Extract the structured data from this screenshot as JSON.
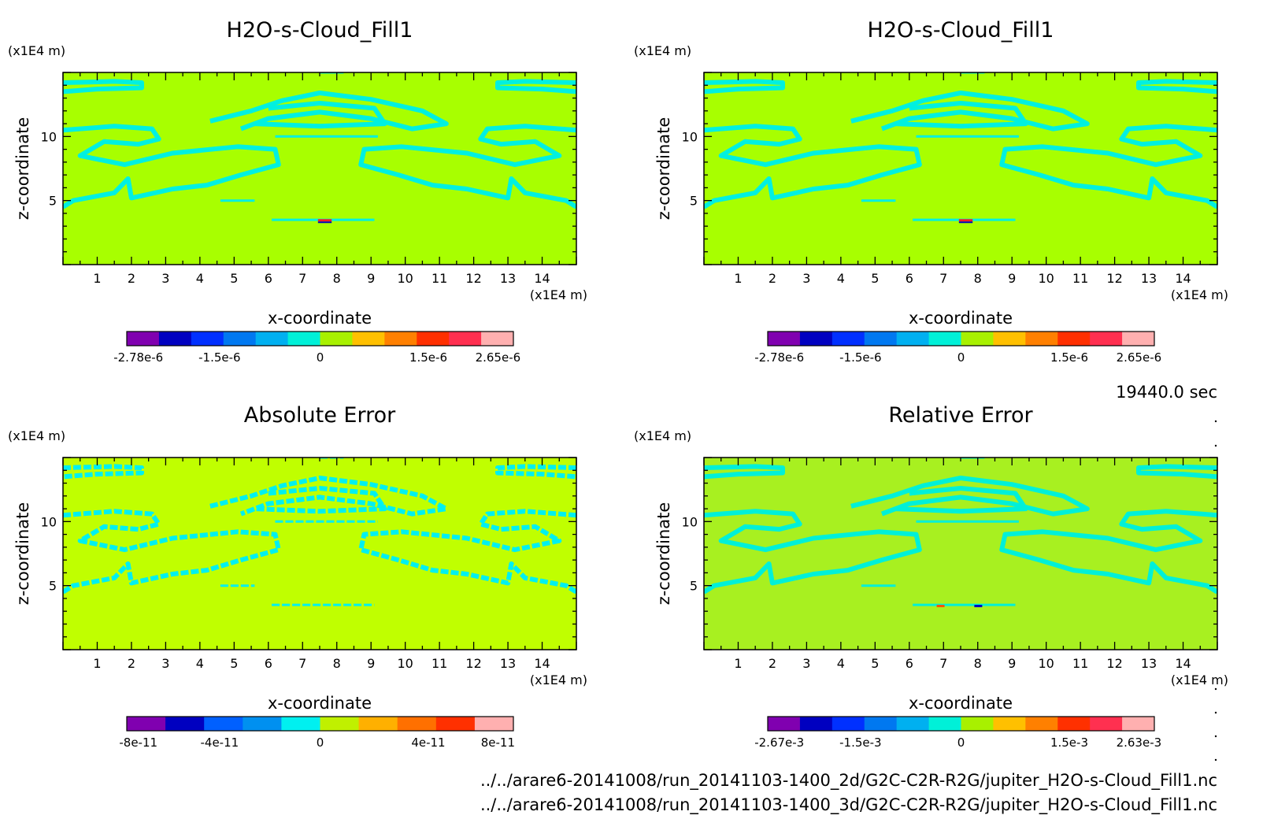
{
  "time_label": "19440.0 sec",
  "file_paths": [
    "../../arare6-20141008/run_20141103-1400_2d/G2C-C2R-R2G/jupiter_H2O-s-Cloud_Fill1.nc",
    "../../arare6-20141008/run_20141103-1400_3d/G2C-C2R-R2G/jupiter_H2O-s-Cloud_Fill1.nc"
  ],
  "chart_data": [
    {
      "type": "heatmap",
      "title": "H2O-s-Cloud_Fill1",
      "xlabel": "x-coordinate",
      "ylabel": "z-coordinate",
      "x_unit": "(x1E4 m)",
      "y_unit": "(x1E4 m)",
      "xlim": [
        0,
        15
      ],
      "ylim": [
        0,
        15
      ],
      "x_ticks": [
        "1",
        "2",
        "3",
        "4",
        "5",
        "6",
        "7",
        "8",
        "9",
        "10",
        "11",
        "12",
        "13",
        "14"
      ],
      "y_ticks": [
        "5",
        "10"
      ],
      "colorbar": {
        "labels": [
          "-2.78e-6",
          "-1.5e-6",
          "0",
          "1.5e-6",
          "2.65e-6"
        ],
        "colors": [
          "#8000b0",
          "#0000c0",
          "#0030ff",
          "#0078f0",
          "#00b0f0",
          "#00f0d8",
          "#a8f000",
          "#ffc000",
          "#ff8000",
          "#ff3000",
          "#ff3050",
          "#ffb0b0"
        ]
      },
      "background_color": "#a8ff00",
      "feature_color": "#00f0e0"
    },
    {
      "type": "heatmap",
      "title": "H2O-s-Cloud_Fill1",
      "xlabel": "x-coordinate",
      "ylabel": "z-coordinate",
      "x_unit": "(x1E4 m)",
      "y_unit": "(x1E4 m)",
      "xlim": [
        0,
        15
      ],
      "ylim": [
        0,
        15
      ],
      "x_ticks": [
        "1",
        "2",
        "3",
        "4",
        "5",
        "6",
        "7",
        "8",
        "9",
        "10",
        "11",
        "12",
        "13",
        "14"
      ],
      "y_ticks": [
        "5",
        "10"
      ],
      "colorbar": {
        "labels": [
          "-2.78e-6",
          "-1.5e-6",
          "0",
          "1.5e-6",
          "2.65e-6"
        ],
        "colors": [
          "#8000b0",
          "#0000c0",
          "#0030ff",
          "#0078f0",
          "#00b0f0",
          "#00f0d8",
          "#a8f000",
          "#ffc000",
          "#ff8000",
          "#ff3000",
          "#ff3050",
          "#ffb0b0"
        ]
      },
      "background_color": "#a8ff00",
      "feature_color": "#00f0e0"
    },
    {
      "type": "heatmap",
      "title": "Absolute Error",
      "xlabel": "x-coordinate",
      "ylabel": "z-coordinate",
      "x_unit": "(x1E4 m)",
      "y_unit": "(x1E4 m)",
      "xlim": [
        0,
        15
      ],
      "ylim": [
        0,
        15
      ],
      "x_ticks": [
        "1",
        "2",
        "3",
        "4",
        "5",
        "6",
        "7",
        "8",
        "9",
        "10",
        "11",
        "12",
        "13",
        "14"
      ],
      "y_ticks": [
        "5",
        "10"
      ],
      "colorbar": {
        "labels": [
          "-8e-11",
          "-4e-11",
          "0",
          "4e-11",
          "8e-11"
        ],
        "colors": [
          "#8000b0",
          "#0000c0",
          "#0060ff",
          "#0090f0",
          "#00f0f0",
          "#c0f000",
          "#ffb000",
          "#ff7000",
          "#ff3000",
          "#ffb0b0"
        ]
      },
      "background_color": "#c0ff00",
      "feature_color": "#00f0f0"
    },
    {
      "type": "heatmap",
      "title": "Relative Error",
      "xlabel": "x-coordinate",
      "ylabel": "z-coordinate",
      "x_unit": "(x1E4 m)",
      "y_unit": "(x1E4 m)",
      "xlim": [
        0,
        15
      ],
      "ylim": [
        0,
        15
      ],
      "x_ticks": [
        "1",
        "2",
        "3",
        "4",
        "5",
        "6",
        "7",
        "8",
        "9",
        "10",
        "11",
        "12",
        "13",
        "14"
      ],
      "y_ticks": [
        "5",
        "10"
      ],
      "colorbar": {
        "labels": [
          "-2.67e-3",
          "-1.5e-3",
          "0",
          "1.5e-3",
          "2.63e-3"
        ],
        "colors": [
          "#8000b0",
          "#0000c0",
          "#0030ff",
          "#0078f0",
          "#00b0f0",
          "#00f0d8",
          "#a8f000",
          "#ffc000",
          "#ff8000",
          "#ff3000",
          "#ff3050",
          "#ffb0b0"
        ]
      },
      "background_color": "#a8f020",
      "feature_color": "#00f0d8"
    }
  ]
}
